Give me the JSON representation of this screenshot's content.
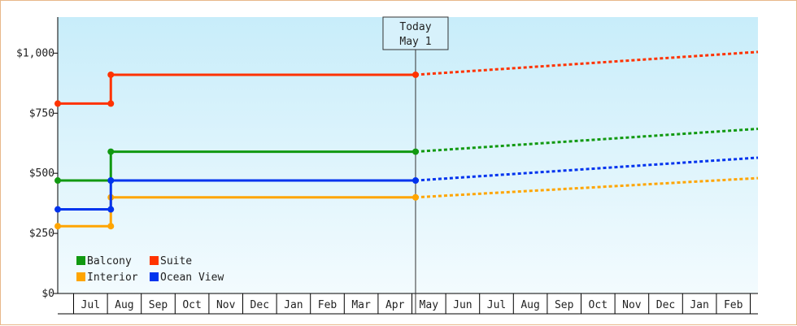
{
  "chart_data": {
    "type": "line",
    "title": "",
    "xlabel": "",
    "ylabel": "",
    "ylim": [
      0,
      1150
    ],
    "yticks": [
      {
        "value": 0,
        "label": "$0"
      },
      {
        "value": 250,
        "label": "$250"
      },
      {
        "value": 500,
        "label": "$500"
      },
      {
        "value": 750,
        "label": "$750"
      },
      {
        "value": 1000,
        "label": "$1,000"
      }
    ],
    "months": [
      "Jul",
      "Aug",
      "Sep",
      "Oct",
      "Nov",
      "Dec",
      "Jan",
      "Feb",
      "Mar",
      "Apr",
      "May",
      "Jun",
      "Jul",
      "Aug",
      "Sep",
      "Oct",
      "Nov",
      "Dec",
      "Jan",
      "Feb"
    ],
    "x_range": [
      -0.45,
      20.0
    ],
    "today": {
      "line1": "Today",
      "line2": "May 1",
      "x": 10.0
    },
    "grid": false,
    "legend_position": "bottom-left",
    "series": [
      {
        "name": "Balcony",
        "color": "#119911",
        "history": [
          [
            -0.45,
            470
          ],
          [
            1.1,
            470
          ],
          [
            1.1,
            590
          ],
          [
            10.0,
            590
          ]
        ],
        "forecast": [
          [
            10.0,
            590
          ],
          [
            20.0,
            685
          ]
        ]
      },
      {
        "name": "Suite",
        "color": "#ff3300",
        "history": [
          [
            -0.45,
            790
          ],
          [
            1.1,
            790
          ],
          [
            1.1,
            910
          ],
          [
            10.0,
            910
          ]
        ],
        "forecast": [
          [
            10.0,
            910
          ],
          [
            20.0,
            1005
          ]
        ]
      },
      {
        "name": "Interior",
        "color": "#ffa500",
        "history": [
          [
            -0.45,
            280
          ],
          [
            1.1,
            280
          ],
          [
            1.1,
            400
          ],
          [
            10.0,
            400
          ]
        ],
        "forecast": [
          [
            10.0,
            400
          ],
          [
            20.0,
            480
          ]
        ]
      },
      {
        "name": "Ocean View",
        "color": "#0033ee",
        "history": [
          [
            -0.45,
            350
          ],
          [
            1.1,
            350
          ],
          [
            1.1,
            470
          ],
          [
            10.0,
            470
          ]
        ],
        "forecast": [
          [
            10.0,
            470
          ],
          [
            20.0,
            565
          ]
        ]
      }
    ]
  }
}
